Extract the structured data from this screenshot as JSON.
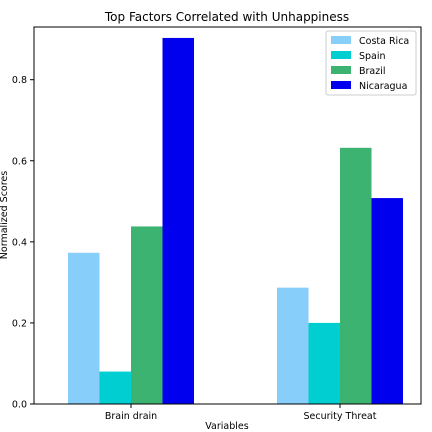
{
  "chart_data": {
    "type": "bar",
    "title": "Top Factors Correlated with Unhappiness",
    "xlabel": "Variables",
    "ylabel": "Normalized Scores",
    "categories": [
      "Brain drain",
      "Security Threat"
    ],
    "series": [
      {
        "name": "Costa Rica",
        "color": "#87CEFA",
        "values": [
          0.373,
          0.287
        ]
      },
      {
        "name": "Spain",
        "color": "#00CED1",
        "values": [
          0.08,
          0.2
        ]
      },
      {
        "name": "Brazil",
        "color": "#3CB371",
        "values": [
          0.438,
          0.632
        ]
      },
      {
        "name": "Nicaragua",
        "color": "#0000EE",
        "values": [
          0.903,
          0.508
        ]
      }
    ],
    "ylim": [
      0,
      0.93
    ],
    "yticks": [
      "0.0",
      "0.2",
      "0.4",
      "0.6",
      "0.8"
    ],
    "ytick_values": [
      0.0,
      0.2,
      0.4,
      0.6,
      0.8
    ],
    "grid": false,
    "legend_position": "top-right"
  }
}
